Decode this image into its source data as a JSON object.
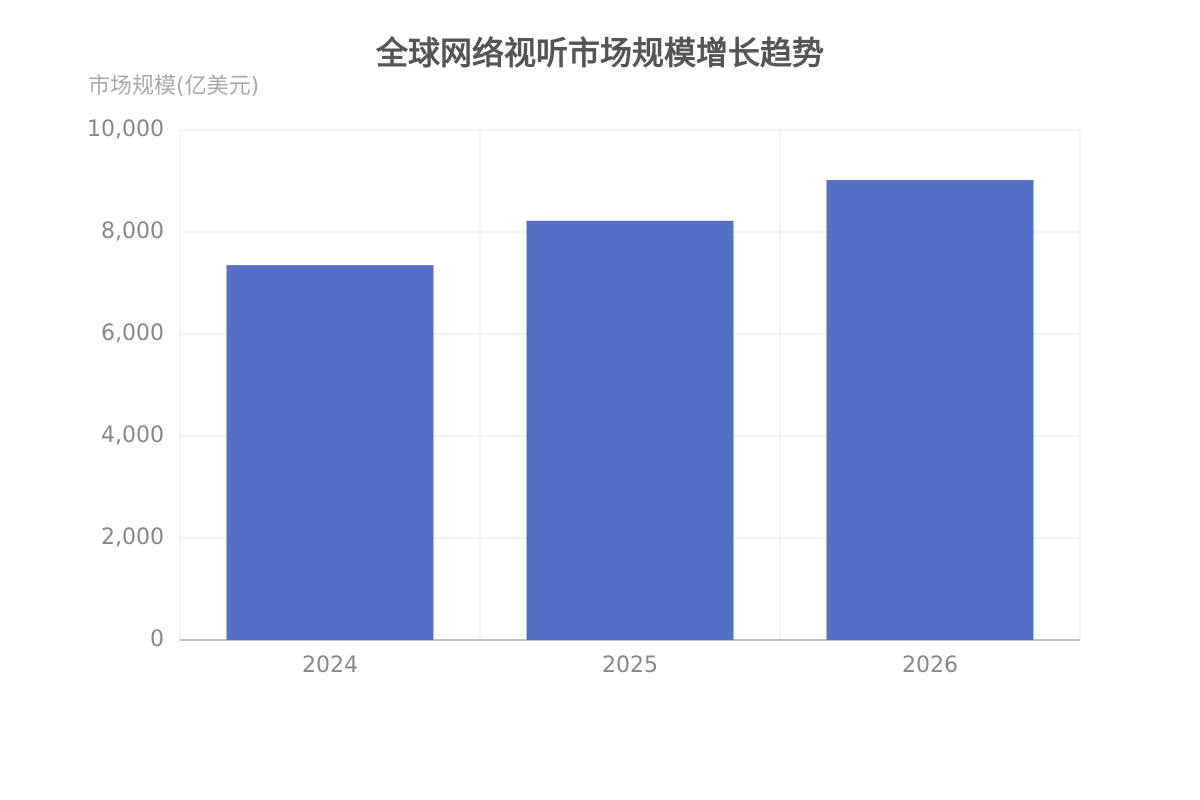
{
  "chart_data": {
    "type": "bar",
    "title": "全球网络视听市场规模增长趋势",
    "y_label": "市场规模(亿美元)",
    "categories": [
      "2024",
      "2025",
      "2026"
    ],
    "values": [
      7350,
      8220,
      9020
    ],
    "color": "#5470c6",
    "ylim": [
      0,
      10000
    ],
    "yticks": [
      0,
      {
        "value": 2000,
        "label": "2,000"
      },
      {
        "value": 4000,
        "label": "4,000"
      },
      {
        "value": 6000,
        "label": "6,000"
      },
      {
        "value": 8000,
        "label": "8,000"
      },
      {
        "value": 10000,
        "label": "10,000"
      }
    ],
    "grid": true
  }
}
